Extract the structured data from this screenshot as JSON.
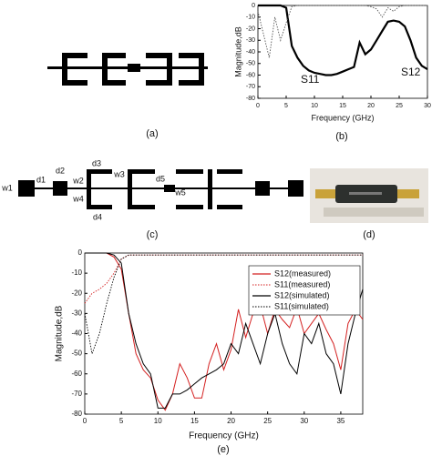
{
  "panels": {
    "captions": [
      "(a)",
      "(b)",
      "(c)",
      "(d)",
      "(e)"
    ],
    "diagram_c_labels": [
      "w1",
      "d1",
      "d2",
      "d3",
      "w3",
      "w2",
      "w4",
      "d4",
      "d5",
      "w5"
    ]
  },
  "chart_data": [
    {
      "type": "line",
      "xlabel": "Frequency (GHz)",
      "ylabel": "Magnitude,dB",
      "annotations": [
        "S11",
        "S12"
      ],
      "x": [
        0,
        1,
        2,
        3,
        4,
        5,
        6,
        7,
        8,
        9,
        10,
        11,
        12,
        13,
        14,
        15,
        16,
        17,
        18,
        19,
        20,
        21,
        22,
        23,
        24,
        25,
        26,
        27,
        28,
        29,
        30
      ],
      "series": [
        {
          "color": "#000000",
          "linestyle": "solid",
          "values": [
            0,
            0,
            0,
            0,
            0,
            -2,
            -35,
            -45,
            -52,
            -56,
            -58,
            -59,
            -60,
            -60,
            -59,
            -57,
            -55,
            -53,
            -32,
            -42,
            -38,
            -30,
            -22,
            -14,
            -13,
            -14,
            -18,
            -30,
            -45,
            -52,
            -55
          ]
        },
        {
          "color": "#555555",
          "linestyle": "dotted",
          "values": [
            -5,
            -25,
            -45,
            -10,
            -30,
            -15,
            -1,
            0,
            0,
            0,
            0,
            0,
            0,
            0,
            0,
            0,
            0,
            0,
            0,
            0,
            -1,
            -3,
            -10,
            -2,
            -5,
            -1,
            0,
            0,
            0,
            0,
            0
          ]
        }
      ],
      "xlim": [
        0,
        30
      ],
      "xticks": [
        0,
        5,
        10,
        15,
        20,
        25,
        30
      ],
      "ylim": [
        -80,
        0
      ],
      "yticks": [
        0,
        -10,
        -20,
        -30,
        -40,
        -50,
        -60,
        -70,
        -80
      ],
      "grid": false
    },
    {
      "type": "line",
      "xlabel": "Frequency (GHz)",
      "ylabel": "Magnitude,dB",
      "legend": "upper right",
      "x": [
        0,
        1,
        2,
        3,
        4,
        5,
        6,
        7,
        8,
        9,
        10,
        11,
        12,
        13,
        14,
        15,
        16,
        17,
        18,
        19,
        20,
        21,
        22,
        23,
        24,
        25,
        26,
        27,
        28,
        29,
        30,
        31,
        32,
        33,
        34,
        35,
        36,
        37,
        38
      ],
      "series": [
        {
          "name": "S12(measured)",
          "color": "#d42020",
          "linestyle": "solid",
          "values": [
            0,
            0,
            0,
            0,
            -2,
            -8,
            -30,
            -50,
            -58,
            -62,
            -73,
            -78,
            -70,
            -55,
            -62,
            -72,
            -72,
            -55,
            -45,
            -58,
            -48,
            -28,
            -42,
            -30,
            -26,
            -40,
            -28,
            -33,
            -37,
            -27,
            -40,
            -35,
            -30,
            -38,
            -45,
            -58,
            -35,
            -28,
            -33
          ]
        },
        {
          "name": "S11(measured)",
          "color": "#d42020",
          "linestyle": "dotted",
          "values": [
            -25,
            -20,
            -18,
            -15,
            -10,
            -3,
            -1,
            -1,
            -1,
            -1,
            -1,
            -1,
            -1,
            -1,
            -1,
            -1,
            -1,
            -1,
            -1,
            -1,
            -1,
            -1,
            -1,
            -1,
            -1,
            -1,
            -1,
            -1,
            -1,
            -1,
            -1,
            -1,
            -1,
            -1,
            -1,
            -1,
            -1,
            -1,
            -1
          ]
        },
        {
          "name": "S12(simulated)",
          "color": "#000000",
          "linestyle": "solid",
          "values": [
            0,
            0,
            0,
            0,
            -1,
            -5,
            -30,
            -45,
            -55,
            -60,
            -77,
            -77,
            -70,
            -70,
            -68,
            -65,
            -62,
            -60,
            -58,
            -55,
            -45,
            -50,
            -35,
            -45,
            -55,
            -40,
            -30,
            -45,
            -55,
            -60,
            -40,
            -45,
            -35,
            -50,
            -55,
            -70,
            -45,
            -30,
            -18
          ]
        },
        {
          "name": "S11(simulated)",
          "color": "#000000",
          "linestyle": "dotted",
          "values": [
            -30,
            -50,
            -40,
            -25,
            -12,
            -3,
            -1,
            -1,
            -1,
            -1,
            -1,
            -1,
            -1,
            -1,
            -1,
            -1,
            -1,
            -1,
            -1,
            -1,
            -1,
            -1,
            -1,
            -1,
            -1,
            -1,
            -1,
            -1,
            -1,
            -1,
            -1,
            -1,
            -1,
            -1,
            -1,
            -1,
            -1,
            -1,
            -1
          ]
        }
      ],
      "xlim": [
        0,
        38
      ],
      "xticks": [
        0,
        5,
        10,
        15,
        20,
        25,
        30,
        35
      ],
      "ylim": [
        -80,
        0
      ],
      "yticks": [
        0,
        -10,
        -20,
        -30,
        -40,
        -50,
        -60,
        -70,
        -80
      ],
      "grid": false
    }
  ]
}
